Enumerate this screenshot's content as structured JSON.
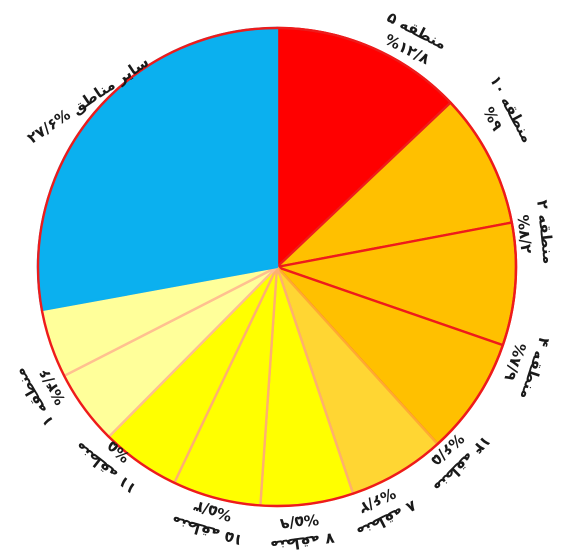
{
  "chart_data": {
    "type": "pie",
    "title": "",
    "slices": [
      {
        "name": "منطقه ۵",
        "value": 12.8,
        "value_label": "%۱۲/۸",
        "color": "#ff0000",
        "edge": "#e30000",
        "lines": [
          "منطقه ۵",
          "%۱۲/۸"
        ]
      },
      {
        "name": "منطقه ۱۰",
        "value": 9.0,
        "value_label": "%۹",
        "color": "#ffc000",
        "edge": "#ee1b1b",
        "lines": [
          "منطقه ۱۰",
          "%۹"
        ]
      },
      {
        "name": "منطقه ۲",
        "value": 8.2,
        "value_label": "%۸/۲",
        "color": "#ffc000",
        "edge": "#ee1b1b",
        "lines": [
          "منطقه ۲",
          "%۸/۲"
        ]
      },
      {
        "name": "منطقه ۴",
        "value": 7.9,
        "value_label": "%۷/۹",
        "color": "#ffc000",
        "edge": "#ee1b1b",
        "lines": [
          "منطقه ۴",
          "%۷/۹"
        ]
      },
      {
        "name": "منطقه ۱۴",
        "value": 6.5,
        "value_label": "%۶/۵",
        "color": "#ffd633",
        "edge": "#ffaa33",
        "lines": [
          "منطقه ۱۴",
          "%۶/۵"
        ]
      },
      {
        "name": "منطقه ۸",
        "value": 6.2,
        "value_label": "%۶/۲",
        "color": "#ffff00",
        "edge": "#ffb070",
        "lines": [
          "منطقه ۸",
          "%۶/۲"
        ]
      },
      {
        "name": "منطقه ۷",
        "value": 5.9,
        "value_label": "%۵/۹",
        "color": "#ffff00",
        "edge": "#ffb070",
        "lines": [
          "منطقه ۷",
          "%۵/۹"
        ]
      },
      {
        "name": "منطقه ۱۵",
        "value": 5.3,
        "value_label": "%۵/۳",
        "color": "#ffff00",
        "edge": "#ffb070",
        "lines": [
          "منطقه ۱۵",
          "%۵/۳"
        ]
      },
      {
        "name": "منطقه ۱۱",
        "value": 5.0,
        "value_label": "%۵",
        "color": "#ffff9a",
        "edge": "#ffc090",
        "lines": [
          "منطقه ۱۱",
          "%۵"
        ]
      },
      {
        "name": "منطقه ۱",
        "value": 4.6,
        "value_label": "%۴/۶",
        "color": "#ffff9a",
        "edge": "#ffc090",
        "lines": [
          "منطقه ۱",
          "%۴/۶"
        ]
      },
      {
        "name": "سایر مناطق",
        "value": 27.6,
        "value_label": "%۲۷/۶",
        "color": "#0bb0ef",
        "edge": "#0bb0ef",
        "lines": [
          "سایر مناطق %۲۷/۶"
        ]
      }
    ],
    "start_angle": "12 o'clock",
    "direction": "clockwise",
    "outline_color": "#ee1b1b",
    "legend": "none"
  }
}
